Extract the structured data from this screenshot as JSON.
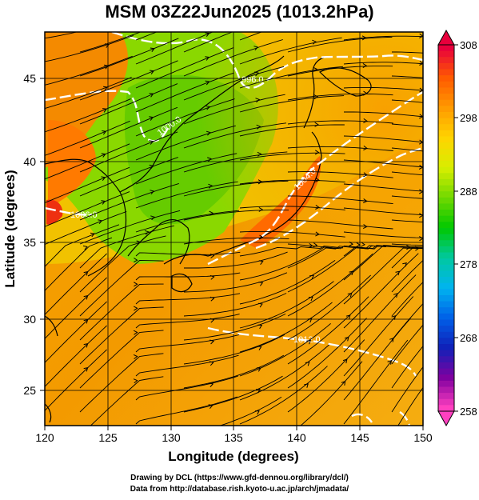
{
  "title": "MSM 03Z22Jun2025 (1013.2hPa)",
  "axes": {
    "xlabel": "Longitude (degrees)",
    "ylabel": "Latitude  (degrees)",
    "xticks": [
      "120",
      "125",
      "130",
      "135",
      "140",
      "145",
      "150"
    ],
    "yticks": [
      "25",
      "30",
      "35",
      "40",
      "45"
    ]
  },
  "colorbar": {
    "labels": [
      "308",
      "298",
      "288",
      "278",
      "268",
      "258"
    ],
    "colors": [
      "#e8003c",
      "#ff5a00",
      "#ff9a00",
      "#ffd400",
      "#d8ee00",
      "#70d800",
      "#00c800",
      "#00c8a0",
      "#00b4f0",
      "#0060e8",
      "#1020b8",
      "#8000a0",
      "#ff40c0"
    ]
  },
  "contour_labels": [
    "1012.0",
    "1006.0",
    "996.0",
    "1000.0",
    "1004.0",
    "1008.0"
  ],
  "credits": {
    "line1": "Drawing by DCL (https://www.gfd-dennou.org/library/dcl/)",
    "line2": "Data from http://database.rish.kyoto-u.ac.jp/arch/jmadata/"
  },
  "map_data": {
    "type": "map",
    "field": "temperature (K) with wind streamlines and pressure contours",
    "lon_range": [
      120,
      150
    ],
    "lat_range": [
      22.5,
      48
    ],
    "grid": true,
    "colorbar_range": [
      258,
      308
    ]
  }
}
